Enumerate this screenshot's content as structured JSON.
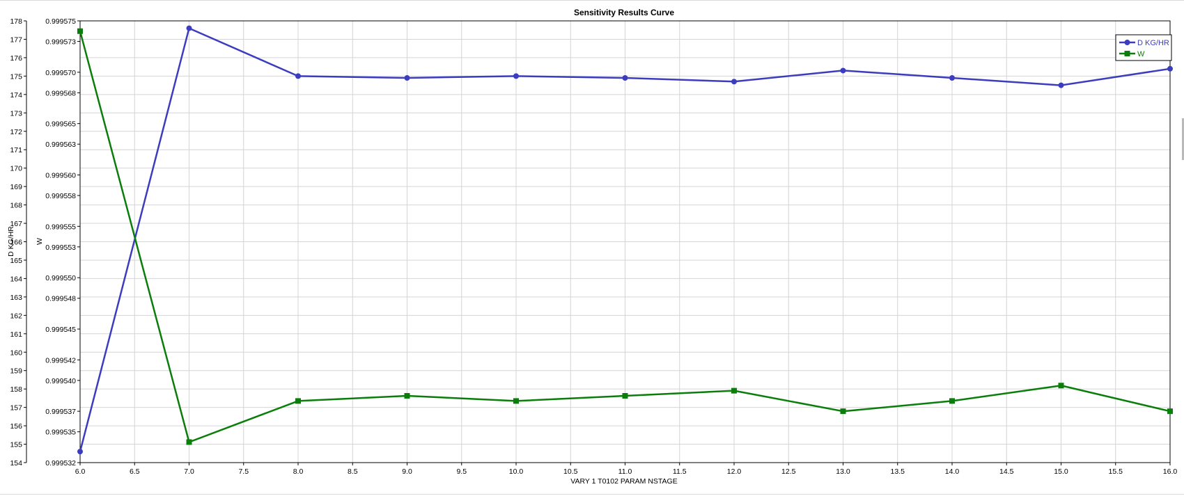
{
  "chart_data": {
    "type": "line",
    "title": "Sensitivity Results Curve",
    "xlabel": "VARY   1 T0102 PARAM NSTAGE",
    "ylabel_left": "D KG/HR",
    "ylabel_right": "W",
    "xlim": [
      6.0,
      16.0
    ],
    "x_ticks": [
      "6.0",
      "6.5",
      "7.0",
      "7.5",
      "8.0",
      "8.5",
      "9.0",
      "9.5",
      "10.0",
      "10.5",
      "11.0",
      "11.5",
      "12.0",
      "12.5",
      "13.0",
      "13.5",
      "14.0",
      "14.5",
      "15.0",
      "15.5",
      "16.0"
    ],
    "ylim_left": [
      154,
      178
    ],
    "y_ticks_left": [
      "154",
      "155",
      "156",
      "157",
      "158",
      "159",
      "160",
      "161",
      "162",
      "163",
      "164",
      "165",
      "166",
      "167",
      "168",
      "169",
      "170",
      "171",
      "172",
      "173",
      "174",
      "175",
      "176",
      "177",
      "178"
    ],
    "ylim_right": [
      0.999532,
      0.999575
    ],
    "y_ticks_right": [
      "0.999532",
      "0.999535",
      "0.999537",
      "0.999540",
      "0.999542",
      "0.999545",
      "0.999548",
      "0.999550",
      "0.999553",
      "0.999555",
      "0.999558",
      "0.999560",
      "0.999563",
      "0.999565",
      "0.999568",
      "0.999570",
      "0.999573",
      "0.999575"
    ],
    "grid": true,
    "legend_position": "top-right",
    "series": [
      {
        "name": "D KG/HR",
        "axis": "left",
        "color": "#3c3cbe",
        "marker": "circle",
        "x": [
          6,
          7,
          8,
          9,
          10,
          11,
          12,
          13,
          14,
          15,
          16
        ],
        "values": [
          154.6,
          177.6,
          175.0,
          174.9,
          175.0,
          174.9,
          174.7,
          175.3,
          174.9,
          174.5,
          175.4
        ]
      },
      {
        "name": "W",
        "axis": "right",
        "color": "#0a7d0a",
        "marker": "square",
        "x": [
          6,
          7,
          8,
          9,
          10,
          11,
          12,
          13,
          14,
          15,
          16
        ],
        "values": [
          0.999574,
          0.999534,
          0.999538,
          0.9995385,
          0.999538,
          0.9995385,
          0.999539,
          0.999537,
          0.999538,
          0.9995395,
          0.999537
        ]
      }
    ]
  }
}
